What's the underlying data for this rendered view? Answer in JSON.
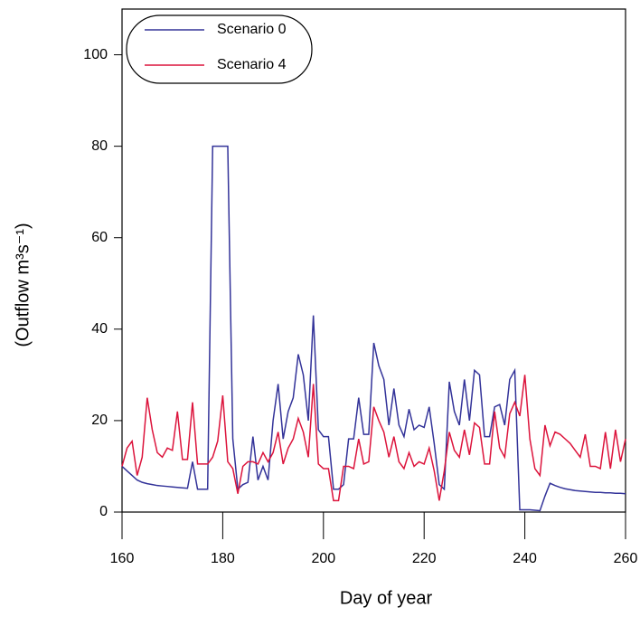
{
  "chart_data": {
    "type": "line",
    "xlabel": "Day of year",
    "ylabel": "(Outflow m³s⁻¹)",
    "x": [
      160,
      161,
      162,
      163,
      164,
      165,
      166,
      167,
      168,
      169,
      170,
      171,
      172,
      173,
      174,
      175,
      176,
      177,
      178,
      179,
      180,
      181,
      182,
      183,
      184,
      185,
      186,
      187,
      188,
      189,
      190,
      191,
      192,
      193,
      194,
      195,
      196,
      197,
      198,
      199,
      200,
      201,
      202,
      203,
      204,
      205,
      206,
      207,
      208,
      209,
      210,
      211,
      212,
      213,
      214,
      215,
      216,
      217,
      218,
      219,
      220,
      221,
      222,
      223,
      224,
      225,
      226,
      227,
      228,
      229,
      230,
      231,
      232,
      233,
      234,
      235,
      236,
      237,
      238,
      239,
      240,
      241,
      242,
      243,
      244,
      245,
      246,
      247,
      248,
      249,
      250,
      251,
      252,
      253,
      254,
      255,
      256,
      257,
      258,
      259,
      260
    ],
    "series": [
      {
        "name": "Scenario 0",
        "color": "#333399",
        "values": [
          10,
          9,
          8,
          7,
          6.5,
          6.2,
          6,
          5.8,
          5.7,
          5.6,
          5.5,
          5.4,
          5.3,
          5.2,
          11,
          5,
          5,
          5,
          80,
          80,
          80,
          80,
          16,
          5,
          6,
          6.5,
          16.5,
          7,
          10,
          7,
          20,
          28,
          16,
          22,
          25,
          34.5,
          30,
          20,
          43,
          18,
          16.5,
          16.5,
          5,
          5,
          6,
          16,
          16,
          25,
          17,
          17,
          37,
          32,
          29,
          19,
          27,
          19,
          16.5,
          22.5,
          18,
          19,
          18.5,
          23,
          15,
          6,
          5,
          28.5,
          22,
          19,
          29,
          20,
          31,
          30,
          16.5,
          16.5,
          23,
          23.5,
          19,
          29,
          31,
          0.5,
          0.5,
          0.5,
          0.4,
          0.3,
          3.5,
          6.3,
          5.8,
          5.4,
          5.1,
          4.9,
          4.7,
          4.6,
          4.5,
          4.4,
          4.3,
          4.3,
          4.2,
          4.2,
          4.1,
          4.1,
          4.0
        ]
      },
      {
        "name": "Scenario 4",
        "color": "#dc143c",
        "values": [
          10,
          14,
          15.5,
          8,
          12,
          25,
          18,
          13,
          12,
          14,
          13.5,
          22,
          11.5,
          11.5,
          24,
          10.5,
          10.5,
          10.5,
          12,
          15.5,
          25.5,
          11,
          9.5,
          4,
          10,
          11,
          11,
          10.5,
          13,
          11,
          13,
          17.5,
          10.5,
          14,
          16,
          20.5,
          17.5,
          12,
          28,
          10.5,
          9.5,
          9.5,
          2.5,
          2.5,
          10,
          10,
          9.5,
          16,
          10.5,
          11,
          23,
          20,
          17.5,
          12,
          16.5,
          11,
          9.5,
          13,
          10,
          11,
          10.5,
          14,
          9,
          2.5,
          9,
          17.5,
          13.5,
          12,
          18,
          12.5,
          19.5,
          18.5,
          10.5,
          10.5,
          22,
          14,
          12,
          21.5,
          24,
          21,
          30,
          16,
          9.5,
          8,
          19,
          14.5,
          17.5,
          17,
          16,
          15,
          13.5,
          12,
          17,
          10,
          10,
          9.5,
          17.5,
          9.5,
          18,
          11,
          16
        ]
      }
    ],
    "xlim": [
      160,
      260
    ],
    "xticks": [
      160,
      180,
      200,
      220,
      240,
      260
    ],
    "ylim": [
      0,
      110
    ],
    "yticks": [
      0,
      20,
      40,
      60,
      80,
      100
    ],
    "legend": "upper left"
  }
}
